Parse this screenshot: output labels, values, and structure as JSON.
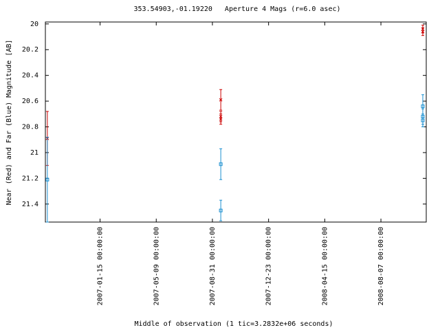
{
  "chart_data": {
    "type": "errorbar",
    "title": "353.54903,-01.19220   Aperture 4 Mags (r=6.0 asec)",
    "x_label": "Middle of observation (1 tic=3.2832e+06 seconds)",
    "y_label": "Near (Red) and Far (Blue) Magnitude [AB]",
    "xlim": [
      "2006-09-26",
      "2008-11-07"
    ],
    "xticks": [
      {
        "value": "2007-01-15",
        "label": "2007-01-15 00:00:00"
      },
      {
        "value": "2007-05-09",
        "label": "2007-05-09 00:00:00"
      },
      {
        "value": "2007-08-31",
        "label": "2007-08-31 00:00:00"
      },
      {
        "value": "2007-12-23",
        "label": "2007-12-23 00:00:00"
      },
      {
        "value": "2008-04-15",
        "label": "2008-04-15 00:00:00"
      },
      {
        "value": "2008-08-07",
        "label": "2008-08-07 00:00:00"
      }
    ],
    "ylim": [
      19.985,
      21.54
    ],
    "y_reversed": true,
    "yticks": [
      20,
      20.2,
      20.4,
      20.6,
      20.8,
      21,
      21.2,
      21.4
    ],
    "series": [
      {
        "color": "#cc0000",
        "marker": "cross",
        "x": [
          "2006-09-30",
          "2007-09-17",
          "2007-09-17",
          "2007-09-17",
          "2008-10-31",
          "2008-10-31"
        ],
        "values": [
          20.89,
          20.59,
          20.72,
          20.74,
          20.04,
          20.06
        ],
        "errors": [
          0.21,
          0.08,
          0.04,
          0.04,
          0.03,
          0.03
        ]
      },
      {
        "color": "#1a8fd0",
        "marker": "square",
        "x": [
          "2006-09-30",
          "2007-09-17",
          "2007-09-17",
          "2008-10-31",
          "2008-10-31",
          "2008-10-31"
        ],
        "values": [
          21.21,
          21.09,
          21.45,
          20.64,
          20.72,
          20.75
        ],
        "errors": [
          0.33,
          0.12,
          0.08,
          0.09,
          0.06,
          0.05
        ]
      }
    ]
  }
}
